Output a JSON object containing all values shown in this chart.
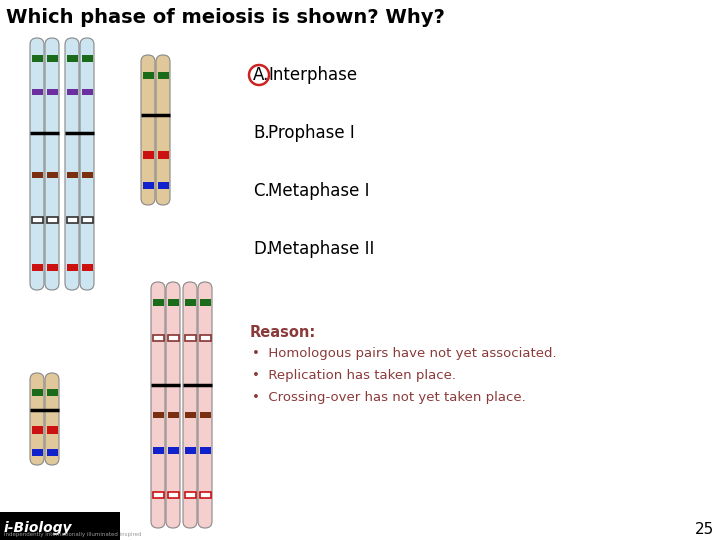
{
  "title": "Which phase of meiosis is shown? Why?",
  "title_fontsize": 14,
  "title_fontweight": "bold",
  "options": [
    {
      "label": "A.",
      "text": "Interphase",
      "circled": true
    },
    {
      "label": "B.",
      "text": "Prophase I",
      "circled": false
    },
    {
      "label": "C.",
      "text": "Metaphase I",
      "circled": false
    },
    {
      "label": "D.",
      "text": "Metaphase II",
      "circled": false
    }
  ],
  "reason_title": "Reason:",
  "reason_bullets": [
    "Homologous pairs have not yet associated.",
    "Replication has taken place.",
    "Crossing-over has not yet taken place."
  ],
  "reason_color": "#8B3A3A",
  "background": "#ffffff",
  "page_number": "25",
  "footer_bg": "#000000",
  "footer_text": "i-Biology",
  "footer_sub": "independently internationally illuminated inspired"
}
